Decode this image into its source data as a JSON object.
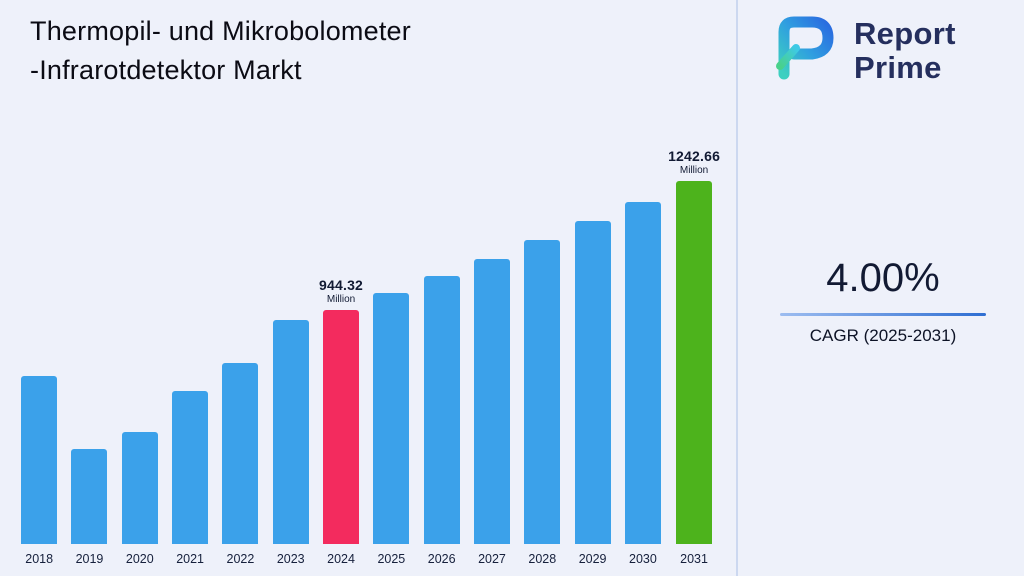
{
  "title": {
    "line1": "Thermopil- und Mikrobolometer",
    "line2": "-Infrarotdetektor Markt"
  },
  "logo": {
    "name": "Report Prime",
    "line1": "Report",
    "line2": "Prime"
  },
  "cagr": {
    "value": "4.00%",
    "label": "CAGR (2025-2031)"
  },
  "colors": {
    "background": "#eef1fa",
    "bar": "#3ba1ea",
    "highlight_2024": "#f32b5e",
    "highlight_2031": "#4db31c",
    "title_text": "#0b0b14",
    "logo_text": "#252f5e",
    "divider": "#ccd8f0",
    "accent_gradient_start": "#9dbdf0",
    "accent_gradient_end": "#2e6ed2"
  },
  "icons": {
    "logo_icon": "report-prime-logo-icon"
  },
  "chart_data": {
    "type": "bar",
    "title": "Thermopil- und Mikrobolometer -Infrarotdetektor Markt",
    "unit": "Million",
    "categories": [
      "2018",
      "2019",
      "2020",
      "2021",
      "2022",
      "2023",
      "2024",
      "2025",
      "2026",
      "2027",
      "2028",
      "2029",
      "2030",
      "2031"
    ],
    "values": [
      790,
      620,
      660,
      755,
      820,
      920,
      944.32,
      982.09,
      1021.38,
      1062.23,
      1104.72,
      1148.91,
      1194.87,
      1242.66
    ],
    "labeled_points": [
      {
        "year": "2024",
        "label": "944.32",
        "sub": "Million"
      },
      {
        "year": "2031",
        "label": "1242.66",
        "sub": "Million"
      }
    ],
    "highlight_colors": {
      "2024": "#f32b5e",
      "2031": "#4db31c"
    },
    "xlabel": "",
    "ylabel": "",
    "ylim": [
      400,
      1242.66
    ],
    "grid": false,
    "legend": false
  }
}
